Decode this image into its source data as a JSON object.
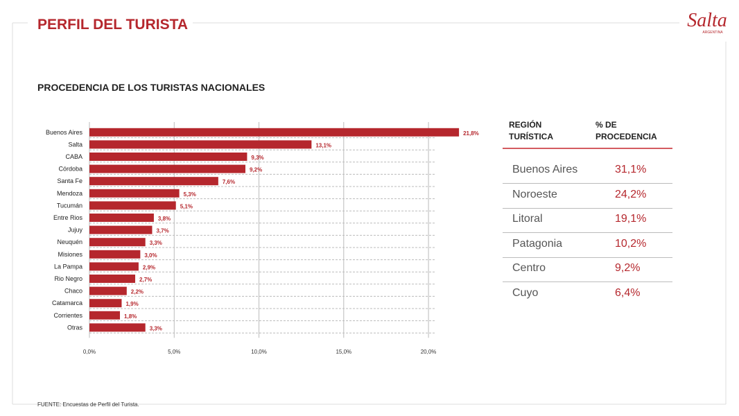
{
  "header": {
    "title": "PERFIL DEL TURISTA",
    "logo": "Salta",
    "logo_sub": "ARGENTINA"
  },
  "chart_data": {
    "type": "bar",
    "orientation": "horizontal",
    "title": "PROCEDENCIA DE LOS TURISTAS NACIONALES",
    "categories": [
      "Buenos Aires",
      "Salta",
      "CABA",
      "Córdoba",
      "Santa Fe",
      "Mendoza",
      "Tucumán",
      "Entre Rios",
      "Jujuy",
      "Neuquén",
      "Misiones",
      "La Pampa",
      "Rio Negro",
      "Chaco",
      "Catamarca",
      "Corrientes",
      "Otras"
    ],
    "values": [
      21.8,
      13.1,
      9.3,
      9.2,
      7.6,
      5.3,
      5.1,
      3.8,
      3.7,
      3.3,
      3.0,
      2.9,
      2.7,
      2.2,
      1.9,
      1.8,
      3.3
    ],
    "value_labels": [
      "21,8%",
      "13,1%",
      "9,3%",
      "9,2%",
      "7,6%",
      "5,3%",
      "5,1%",
      "3,8%",
      "3,7%",
      "3,3%",
      "3,0%",
      "2,9%",
      "2,7%",
      "2,2%",
      "1,9%",
      "1,8%",
      "3,3%"
    ],
    "color": "#b5272d",
    "xlim": [
      0,
      22
    ],
    "xticks": [
      {
        "value": 0,
        "label": "0,0%"
      },
      {
        "value": 5,
        "label": "5,0%"
      },
      {
        "value": 10,
        "label": "10,0%"
      },
      {
        "value": 15,
        "label": "15,0%"
      },
      {
        "value": 20,
        "label": "20,0%"
      }
    ],
    "grid": true
  },
  "table": {
    "headers": [
      "REGIÓN TURÍSTICA",
      "% DE PROCEDENCIA"
    ],
    "rows": [
      [
        "Buenos Aires",
        "31,1%"
      ],
      [
        "Noroeste",
        "24,2%"
      ],
      [
        "Litoral",
        "19,1%"
      ],
      [
        "Patagonia",
        "10,2%"
      ],
      [
        "Centro",
        "9,2%"
      ],
      [
        "Cuyo",
        "6,4%"
      ]
    ]
  },
  "footer": {
    "source": "FUENTE: Encuestas de Perfil del Turista."
  }
}
